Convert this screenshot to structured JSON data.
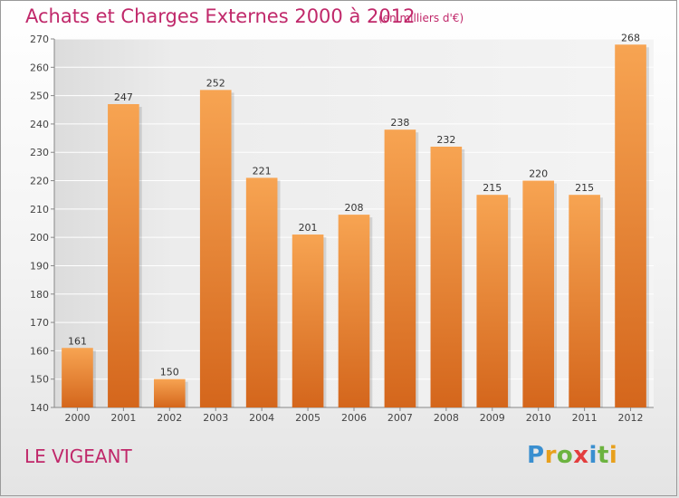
{
  "header": {
    "title": "Achats et Charges Externes 2000 à 2012",
    "subtitle": "(en milliers d'€)"
  },
  "footer": {
    "place": "LE VIGEANT",
    "logo": "Proxiti"
  },
  "colors": {
    "title": "#c0286a",
    "bar_top": "#f7a452",
    "bar_bottom": "#d4661c",
    "plot_bg": "#eeeeee",
    "grid": "#ffffff"
  },
  "chart_data": {
    "type": "bar",
    "title": "Achats et Charges Externes 2000 à 2012",
    "subtitle": "(en milliers d'€)",
    "xlabel": "",
    "ylabel": "",
    "categories": [
      "2000",
      "2001",
      "2002",
      "2003",
      "2004",
      "2005",
      "2006",
      "2007",
      "2008",
      "2009",
      "2010",
      "2011",
      "2012"
    ],
    "values": [
      161,
      247,
      150,
      252,
      221,
      201,
      208,
      238,
      232,
      215,
      220,
      215,
      268
    ],
    "ylim": [
      140,
      270
    ],
    "yticks": [
      140,
      150,
      160,
      170,
      180,
      190,
      200,
      210,
      220,
      230,
      240,
      250,
      260,
      270
    ],
    "grid": true,
    "legend": "none"
  }
}
